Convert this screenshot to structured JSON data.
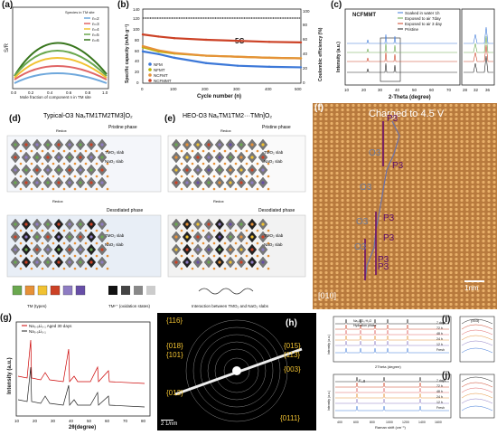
{
  "panels": {
    "a": {
      "label": "(a)",
      "ylabel": "S/R",
      "xlabel": "Mole fraction of component n in TM site",
      "legend_title": "Species in TM site",
      "legend": [
        "n=2",
        "n=3",
        "n=4",
        "n=5",
        "n=6"
      ],
      "ticks_x": [
        "0.0",
        "0.2",
        "0.4",
        "0.6",
        "0.8",
        "1.0"
      ],
      "colors": [
        "#6fa8dc",
        "#e06666",
        "#f1c232",
        "#6aa84f",
        "#38761d"
      ]
    },
    "b": {
      "label": "(b)",
      "ylabel": "Specific capacity (mAh g⁻¹)",
      "ylabel_right": "Coulombic efficiency (%)",
      "xlabel": "Cycle number (n)",
      "rate": "5C",
      "series": [
        "NFM",
        "NFMT",
        "NCFMT",
        "NCFMMT"
      ],
      "ticks_x": [
        "0",
        "100",
        "200",
        "300",
        "400",
        "500"
      ],
      "ticks_y": [
        "0",
        "20",
        "40",
        "60",
        "80",
        "100",
        "120",
        "140"
      ],
      "ticks_y_right": [
        "0",
        "20",
        "40",
        "60",
        "80",
        "100"
      ]
    },
    "c": {
      "label": "(c)",
      "title": "NCFMMT",
      "ylabel": "Intensity (a.u.)",
      "xlabel": "2-Theta (degree)",
      "legend": [
        "Soaked in water 1h",
        "Exposed to air 7day",
        "Exposed to air 3 day",
        "Pristine"
      ],
      "ticks_x": [
        "10",
        "20",
        "30",
        "40",
        "50",
        "60",
        "70"
      ],
      "ticks_x_zoom": [
        "28",
        "32",
        "36"
      ]
    },
    "d": {
      "label": "(d)",
      "title": "Typical-O3 NaₓTM1TM2TM3]O₂",
      "pristine": "Pristine phase",
      "desodiated": "Desodiated phase",
      "redox": "Redox",
      "tmo2": "TMO₂ slab",
      "nao2": "NaO₂ slab"
    },
    "e": {
      "label": "(e)",
      "title": "HEO-O3 NaₓTM1TM2···TMn]O₂",
      "pristine": "Pristine phase",
      "desodiated": "Desodiated phase",
      "redox": "Redox",
      "tmo2": "TMO₂ slab",
      "nao2": "NaO₂ slab"
    },
    "f": {
      "label": "(f)",
      "caption": "Charged to 4.5 V",
      "o3": [
        "O3",
        "O3",
        "O3",
        "O3"
      ],
      "p3": [
        "P3",
        "P3",
        "P3",
        "P3",
        "P3",
        "P3"
      ],
      "zone": "[010]",
      "scale": "1nm"
    },
    "g": {
      "label": "(g)",
      "ylabel": "Intensity (a.u.)",
      "xlabel": "2θ(degree)",
      "legend": [
        "Na₀.₉Li₀.₁ Aged 30 days",
        "Na₀.₉Li₀.₁"
      ],
      "ticks_x": [
        "10",
        "20",
        "30",
        "40",
        "50",
        "60",
        "70",
        "80"
      ]
    },
    "h": {
      "label": "(h)",
      "scale": "2 1/nm",
      "left": [
        "{116}",
        "{018}",
        "{101}",
        "{012}"
      ],
      "right": [
        "{015}",
        "{113}",
        "{003}",
        "{0111}"
      ]
    },
    "i": {
      "label": "(i)",
      "ylabel": "Intensity (a.u.)",
      "xlabel": "2Theta (degree)",
      "peak": "(003)",
      "legend": [
        "Na₂CO₃·H₂O",
        "Hydration phase"
      ],
      "rows": [
        "7 days",
        "72 h",
        "48 h",
        "24 h",
        "12 h",
        "Fresh"
      ]
    },
    "j": {
      "label": "(j)",
      "ylabel": "Intensity (a.u.)",
      "xlabel": "Raman shift (cm⁻¹)",
      "legend_band": "E_g",
      "rows": [
        "7 days",
        "72 h",
        "48 h",
        "24 h",
        "12 h",
        "Fresh"
      ],
      "ticks_x": [
        "400",
        "600",
        "800",
        "1000",
        "1200",
        "1400",
        "1600"
      ]
    }
  },
  "legend_bottom": {
    "tm_types": "TM (types)",
    "tm_ox": "TMⁿ⁺ (oxidation states)",
    "interaction": "Interaction between TMO₂ and NaO₂ slabs",
    "tm_colors": [
      "#6aa84f",
      "#e69138",
      "#f1c232",
      "#cc4125",
      "#8e7cc3",
      "#674ea7"
    ]
  },
  "chart_data": [
    {
      "type": "line",
      "panel": "b",
      "title": "",
      "xlabel": "Cycle number (n)",
      "ylabel": "Specific capacity (mAh g⁻¹)",
      "xlim": [
        0,
        500
      ],
      "ylim": [
        0,
        140
      ],
      "series": [
        {
          "name": "NFM",
          "x": [
            0,
            50,
            100,
            200,
            300,
            400,
            500
          ],
          "values": [
            60,
            55,
            48,
            38,
            33,
            31,
            30
          ]
        },
        {
          "name": "NFMT",
          "x": [
            0,
            50,
            100,
            200,
            300,
            400,
            500
          ],
          "values": [
            68,
            60,
            56,
            52,
            50,
            48,
            47
          ]
        },
        {
          "name": "NCFMT",
          "x": [
            0,
            50,
            100,
            200,
            300,
            400,
            500
          ],
          "values": [
            70,
            62,
            57,
            52,
            50,
            48,
            47
          ]
        },
        {
          "name": "NCFMMT",
          "x": [
            0,
            50,
            100,
            200,
            300,
            400,
            500
          ],
          "values": [
            92,
            88,
            85,
            82,
            80,
            78,
            77
          ]
        }
      ]
    }
  ]
}
